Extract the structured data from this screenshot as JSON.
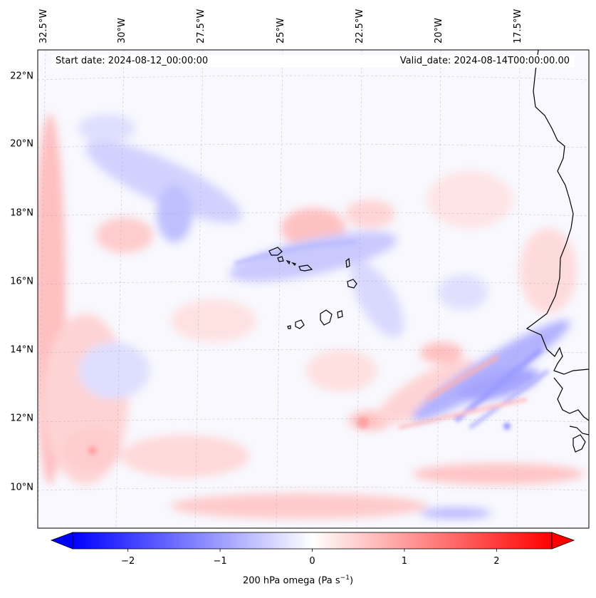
{
  "map": {
    "start_date": "Start date: 2024-08-12_00:00:00",
    "valid_date": "Valid_date: 2024-08-14T00:00:00.00",
    "lon_labels": [
      "32.5°W",
      "30°W",
      "27.5°W",
      "25°W",
      "22.5°W",
      "20°W",
      "17.5°W"
    ],
    "lat_labels": [
      "22°N",
      "20°N",
      "18°N",
      "16°N",
      "14°N",
      "12°N",
      "10°N"
    ],
    "region": "Cape Verde Islands and West African coast",
    "colormap": {
      "negative": "#0000ff",
      "zero": "#ffffff",
      "positive": "#ff0000"
    }
  },
  "colorbar": {
    "ticks": [
      "−2",
      "−1",
      "0",
      "1",
      "2"
    ],
    "tick_values": [
      -2,
      -1,
      0,
      1,
      2
    ],
    "range": [
      -2.6,
      2.6
    ],
    "label_text": "200 hPa omega (Pa s",
    "label_sup": "−1",
    "label_close": ")"
  }
}
